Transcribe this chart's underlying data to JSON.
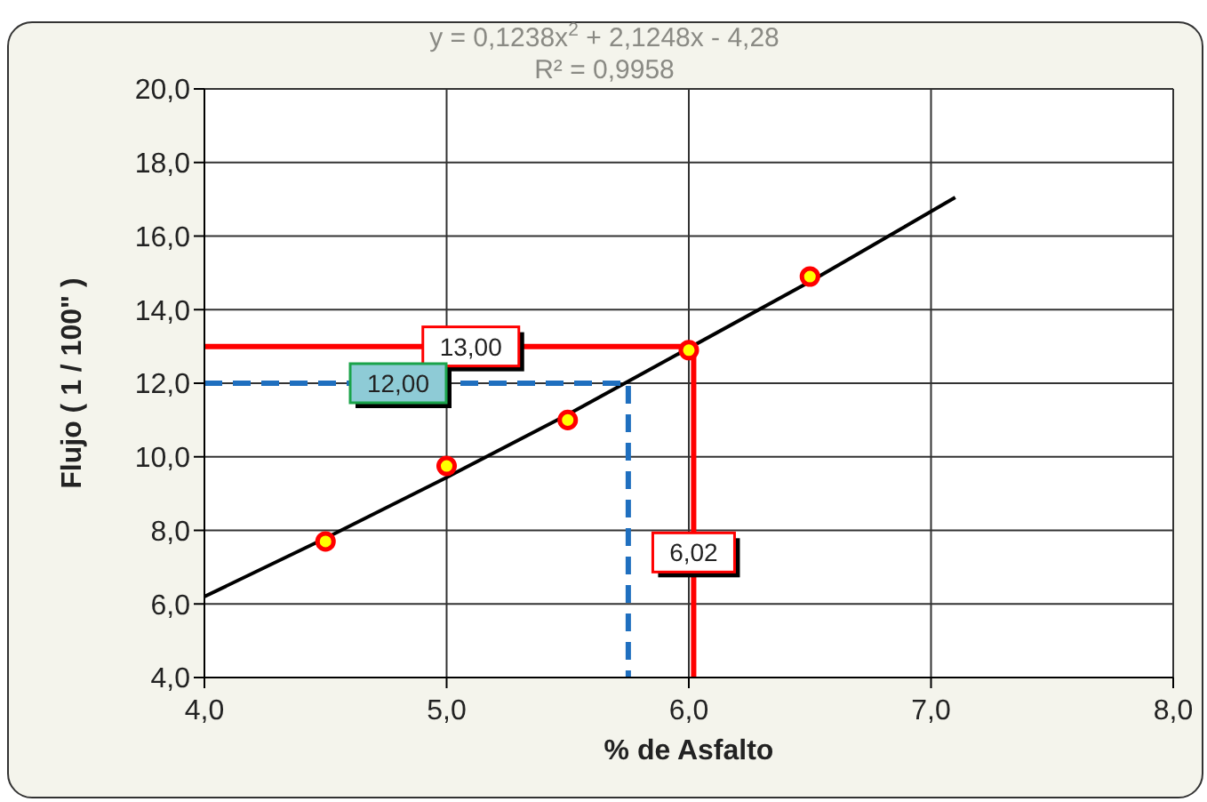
{
  "chart_data": {
    "type": "scatter",
    "xlabel": "% de Asfalto",
    "ylabel": "Flujo ( 1 / 100\" )",
    "xlim": [
      4,
      8
    ],
    "xticks": [
      {
        "value": 4,
        "label": "4,0"
      },
      {
        "value": 5,
        "label": "5,0"
      },
      {
        "value": 6,
        "label": "6,0"
      },
      {
        "value": 7,
        "label": "7,0"
      },
      {
        "value": 8,
        "label": "8,0"
      }
    ],
    "ylim": [
      4,
      20
    ],
    "yticks": [
      {
        "value": 4,
        "label": "4,0"
      },
      {
        "value": 6,
        "label": "6,0"
      },
      {
        "value": 8,
        "label": "8,0"
      },
      {
        "value": 10,
        "label": "10,0"
      },
      {
        "value": 12,
        "label": "12,0"
      },
      {
        "value": 14,
        "label": "14,0"
      },
      {
        "value": 16,
        "label": "16,0"
      },
      {
        "value": 18,
        "label": "18,0"
      },
      {
        "value": 20,
        "label": "20,0"
      }
    ],
    "grid": true,
    "legend": false,
    "series": [
      {
        "type": "line",
        "color": "#000000",
        "marker": "none",
        "line_style": "solid",
        "x": [
          4,
          4.5,
          5,
          5.5,
          6.5,
          7.1
        ],
        "values": [
          6.2,
          7.79,
          9.44,
          11.15,
          14.76,
          17.05
        ]
      },
      {
        "type": "line",
        "color": "#ff0000",
        "marker": "none",
        "line_style": "solid",
        "x": [
          4,
          6.02,
          6.02
        ],
        "values": [
          13,
          13,
          4
        ]
      },
      {
        "type": "line",
        "color": "#1f6fbf",
        "marker": "none",
        "line_style": "dashed",
        "x": [
          4,
          5.75,
          5.75
        ],
        "values": [
          12,
          12,
          4
        ]
      },
      {
        "type": "scatter",
        "color": "#ff0000",
        "marker": "circle",
        "x": [
          4.5,
          5,
          5.5,
          6,
          6.5
        ],
        "values": [
          7.7,
          9.75,
          11,
          12.9,
          14.9
        ]
      }
    ],
    "annotations": [
      "y = 0,1238x$^{2}$ + 2,1248x - 4,28",
      "R² = 0,9958",
      {
        "text": "13,00",
        "x": 5.1,
        "y": 13
      },
      {
        "text": "12,00",
        "x": 4.8,
        "y": 12
      },
      {
        "text": "6,02",
        "x": 6.02,
        "y": 7.4
      }
    ]
  }
}
